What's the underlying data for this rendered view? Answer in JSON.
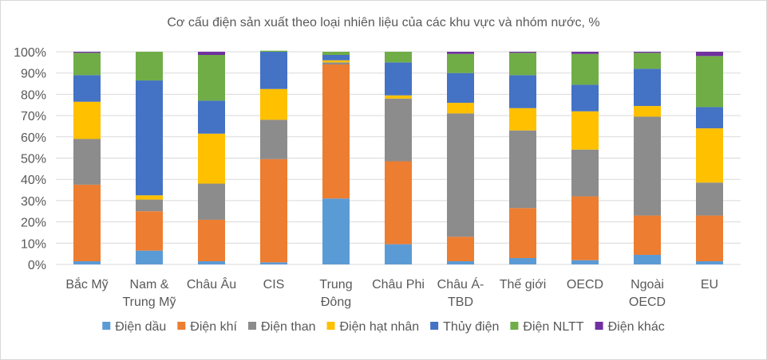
{
  "chart_data": {
    "type": "bar",
    "stacked": true,
    "percent": true,
    "title": "Cơ cấu điện sản xuất theo loại nhiên liệu của các khu vực và nhóm nước, %",
    "categories": [
      [
        "Bắc Mỹ"
      ],
      [
        "Nam &",
        "Trung Mỹ"
      ],
      [
        "Châu Âu"
      ],
      [
        "CIS"
      ],
      [
        "Trung",
        "Đông"
      ],
      [
        "Châu Phi"
      ],
      [
        "Châu Á-",
        "TBD"
      ],
      [
        "Thế giới"
      ],
      [
        "OECD"
      ],
      [
        "Ngoài",
        "OECD"
      ],
      [
        "EU"
      ]
    ],
    "yticks": [
      "0%",
      "10%",
      "20%",
      "30%",
      "40%",
      "50%",
      "60%",
      "70%",
      "80%",
      "90%",
      "100%"
    ],
    "ylim": [
      0,
      100
    ],
    "grid": true,
    "legend_position": "bottom",
    "series": [
      {
        "name": "Điện dầu",
        "color": "#5b9bd5",
        "values": [
          1.5,
          6.5,
          1.5,
          1,
          31,
          9.5,
          1.5,
          3,
          2,
          4.5,
          1.5
        ]
      },
      {
        "name": "Điện khí",
        "color": "#ed7d31",
        "values": [
          36,
          18.5,
          19.5,
          48.5,
          63,
          39,
          11.5,
          23.5,
          30,
          18.5,
          21.5
        ]
      },
      {
        "name": "Điện than",
        "color": "#8c8c8c",
        "values": [
          21.5,
          5.5,
          17,
          18.5,
          1,
          29.5,
          58,
          36.5,
          22,
          46.5,
          15.5
        ]
      },
      {
        "name": "Điện hạt nhân",
        "color": "#ffc000",
        "values": [
          17.5,
          2,
          23.5,
          14.5,
          1,
          1.5,
          5,
          10.5,
          18,
          5,
          25.5
        ]
      },
      {
        "name": "Thủy điện",
        "color": "#4472c4",
        "values": [
          12.5,
          54,
          15.5,
          17.5,
          2.5,
          15.5,
          14,
          15.5,
          12.5,
          17.5,
          10
        ]
      },
      {
        "name": "Điện NLTT",
        "color": "#70ad47",
        "values": [
          10.5,
          13.5,
          21.5,
          0.5,
          1.5,
          5,
          9,
          10.5,
          14.5,
          7.5,
          24
        ]
      },
      {
        "name": "Điện khác",
        "color": "#7030a0",
        "values": [
          0.5,
          0,
          1.5,
          0,
          0,
          0,
          1,
          0.5,
          1,
          0.5,
          2
        ]
      }
    ]
  }
}
